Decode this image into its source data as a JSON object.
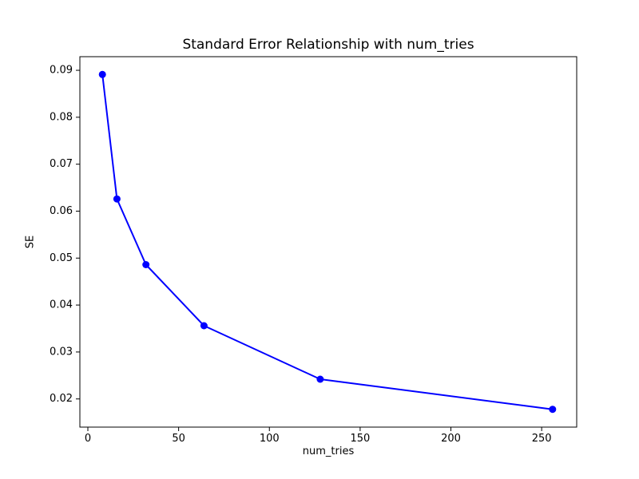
{
  "figure": {
    "background": "#ffffff",
    "spine_color": "#000000",
    "text_color": "#000000"
  },
  "chart_data": {
    "type": "line",
    "title": "Standard Error Relationship with num_tries",
    "xlabel": "num_tries",
    "ylabel": "SE",
    "series": [
      {
        "name": "SE",
        "x": [
          8,
          16,
          32,
          64,
          128,
          256
        ],
        "y": [
          0.0891,
          0.0626,
          0.0486,
          0.0356,
          0.0242,
          0.0178
        ],
        "line_color": "#0000ff",
        "marker": "circle",
        "marker_color": "#0000ff"
      }
    ],
    "xlim": [
      -4.4,
      269.3
    ],
    "ylim": [
      0.014,
      0.0929
    ],
    "xticks": [
      0,
      50,
      100,
      150,
      200,
      250
    ],
    "yticks": [
      0.02,
      0.03,
      0.04,
      0.05,
      0.06,
      0.07,
      0.08,
      0.09
    ],
    "ytick_decimals": 2,
    "grid": false,
    "legend_position": "none"
  }
}
